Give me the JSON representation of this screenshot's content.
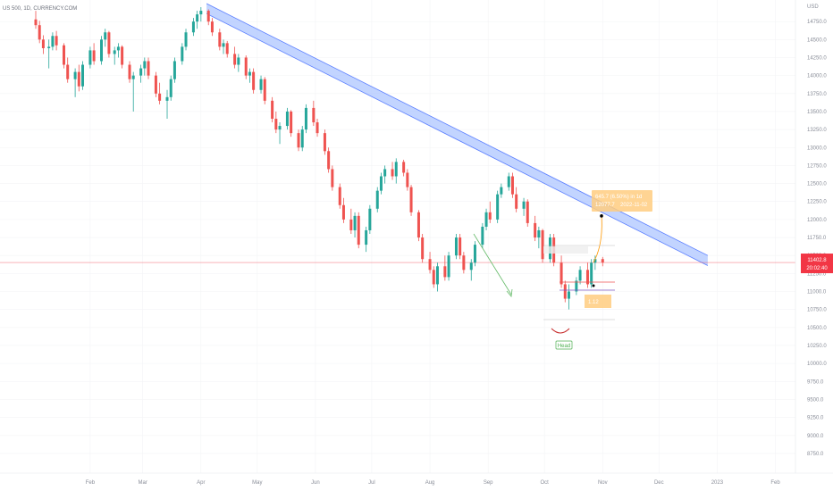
{
  "chart_data": {
    "type": "candlestick",
    "title": "US 500, 1D, CURRENCY.COM",
    "colors": {
      "up": "#26a69a",
      "down": "#ef5350",
      "channel": "#aec6ff",
      "price_line": "#f23645",
      "annotation": "#ffcc80"
    },
    "y_axis": {
      "ticks": [
        "14750.0",
        "14500.0",
        "14250.0",
        "14000.0",
        "13750.0",
        "13500.0",
        "13250.0",
        "13000.0",
        "12750.0",
        "12500.0",
        "12250.0",
        "12000.0",
        "11750.0",
        "11500.0",
        "11250.0",
        "11000.0",
        "10750.0",
        "10500.0",
        "10250.0",
        "10000.0",
        "9750.0",
        "9500.0",
        "9250.0",
        "9000.0",
        "8750.0"
      ],
      "currency": "USD",
      "ylim": [
        8625,
        15000
      ]
    },
    "x_axis": {
      "ticks": [
        "Feb",
        "Mar",
        "Apr",
        "May",
        "Jun",
        "Jul",
        "Aug",
        "Sep",
        "Oct",
        "Nov",
        "Dec",
        "2023",
        "Feb"
      ]
    },
    "current_price": {
      "label": "11402.8",
      "countdown": "20:02:40",
      "value": 11402.8
    },
    "channel": {
      "upper": [
        [
          "2022-04-04",
          15000
        ],
        [
          "2022-12-27",
          11500
        ]
      ],
      "lower": [
        [
          "2022-04-04",
          14860
        ],
        [
          "2022-12-27",
          11360
        ]
      ]
    },
    "annotations": {
      "head_label": "Head",
      "measure_line1": "645.7 (6.50%) in 1d",
      "measure_line2": "12077.7",
      "measure_date": "2022-11-02",
      "target_price": 12050,
      "stop_label": "1.12"
    },
    "candles": [
      {
        "d": "2022-01-03",
        "o": 14780,
        "h": 14900,
        "l": 14650,
        "c": 14700
      },
      {
        "d": "2022-01-05",
        "o": 14700,
        "h": 14760,
        "l": 14450,
        "c": 14500
      },
      {
        "d": "2022-01-07",
        "o": 14500,
        "h": 14560,
        "l": 14300,
        "c": 14380
      },
      {
        "d": "2022-01-10",
        "o": 14380,
        "h": 14500,
        "l": 14100,
        "c": 14400
      },
      {
        "d": "2022-01-12",
        "o": 14400,
        "h": 14600,
        "l": 14350,
        "c": 14550
      },
      {
        "d": "2022-01-14",
        "o": 14550,
        "h": 14620,
        "l": 14350,
        "c": 14420
      },
      {
        "d": "2022-01-18",
        "o": 14420,
        "h": 14450,
        "l": 14100,
        "c": 14150
      },
      {
        "d": "2022-01-20",
        "o": 14150,
        "h": 14250,
        "l": 13900,
        "c": 13950
      },
      {
        "d": "2022-01-24",
        "o": 13950,
        "h": 14100,
        "l": 13700,
        "c": 14050
      },
      {
        "d": "2022-01-26",
        "o": 14050,
        "h": 14150,
        "l": 13780,
        "c": 13850
      },
      {
        "d": "2022-01-28",
        "o": 13850,
        "h": 14200,
        "l": 13800,
        "c": 14150
      },
      {
        "d": "2022-02-01",
        "o": 14150,
        "h": 14400,
        "l": 14100,
        "c": 14350
      },
      {
        "d": "2022-02-03",
        "o": 14350,
        "h": 14450,
        "l": 14150,
        "c": 14200
      },
      {
        "d": "2022-02-07",
        "o": 14200,
        "h": 14550,
        "l": 14150,
        "c": 14500
      },
      {
        "d": "2022-02-09",
        "o": 14500,
        "h": 14650,
        "l": 14400,
        "c": 14600
      },
      {
        "d": "2022-02-11",
        "o": 14600,
        "h": 14620,
        "l": 14250,
        "c": 14300
      },
      {
        "d": "2022-02-14",
        "o": 14300,
        "h": 14400,
        "l": 14150,
        "c": 14350
      },
      {
        "d": "2022-02-16",
        "o": 14350,
        "h": 14450,
        "l": 14250,
        "c": 14400
      },
      {
        "d": "2022-02-18",
        "o": 14400,
        "h": 14420,
        "l": 14100,
        "c": 14150
      },
      {
        "d": "2022-02-22",
        "o": 14150,
        "h": 14200,
        "l": 13900,
        "c": 13950
      },
      {
        "d": "2022-02-24",
        "o": 13950,
        "h": 14050,
        "l": 13500,
        "c": 14000
      },
      {
        "d": "2022-02-28",
        "o": 14000,
        "h": 14150,
        "l": 13900,
        "c": 14100
      },
      {
        "d": "2022-03-02",
        "o": 14100,
        "h": 14250,
        "l": 14000,
        "c": 14200
      },
      {
        "d": "2022-03-04",
        "o": 14200,
        "h": 14250,
        "l": 13950,
        "c": 14000
      },
      {
        "d": "2022-03-08",
        "o": 14000,
        "h": 14050,
        "l": 13700,
        "c": 13750
      },
      {
        "d": "2022-03-10",
        "o": 13750,
        "h": 13900,
        "l": 13600,
        "c": 13650
      },
      {
        "d": "2022-03-14",
        "o": 13650,
        "h": 13800,
        "l": 13400,
        "c": 13700
      },
      {
        "d": "2022-03-16",
        "o": 13700,
        "h": 14000,
        "l": 13650,
        "c": 13950
      },
      {
        "d": "2022-03-18",
        "o": 13950,
        "h": 14250,
        "l": 13900,
        "c": 14200
      },
      {
        "d": "2022-03-22",
        "o": 14200,
        "h": 14450,
        "l": 14150,
        "c": 14400
      },
      {
        "d": "2022-03-24",
        "o": 14400,
        "h": 14650,
        "l": 14350,
        "c": 14600
      },
      {
        "d": "2022-03-28",
        "o": 14600,
        "h": 14800,
        "l": 14550,
        "c": 14750
      },
      {
        "d": "2022-03-30",
        "o": 14750,
        "h": 14900,
        "l": 14650,
        "c": 14850
      },
      {
        "d": "2022-04-01",
        "o": 14850,
        "h": 14950,
        "l": 14750,
        "c": 14900
      },
      {
        "d": "2022-04-05",
        "o": 14900,
        "h": 14920,
        "l": 14700,
        "c": 14750
      },
      {
        "d": "2022-04-07",
        "o": 14750,
        "h": 14800,
        "l": 14550,
        "c": 14600
      },
      {
        "d": "2022-04-11",
        "o": 14600,
        "h": 14650,
        "l": 14350,
        "c": 14400
      },
      {
        "d": "2022-04-13",
        "o": 14400,
        "h": 14500,
        "l": 14300,
        "c": 14450
      },
      {
        "d": "2022-04-15",
        "o": 14450,
        "h": 14480,
        "l": 14250,
        "c": 14300
      },
      {
        "d": "2022-04-19",
        "o": 14300,
        "h": 14400,
        "l": 14100,
        "c": 14150
      },
      {
        "d": "2022-04-21",
        "o": 14150,
        "h": 14300,
        "l": 14050,
        "c": 14250
      },
      {
        "d": "2022-04-25",
        "o": 14250,
        "h": 14280,
        "l": 13950,
        "c": 14000
      },
      {
        "d": "2022-04-27",
        "o": 14000,
        "h": 14100,
        "l": 13900,
        "c": 14050
      },
      {
        "d": "2022-04-29",
        "o": 14050,
        "h": 14100,
        "l": 13750,
        "c": 13800
      },
      {
        "d": "2022-05-03",
        "o": 13800,
        "h": 14000,
        "l": 13750,
        "c": 13950
      },
      {
        "d": "2022-05-05",
        "o": 13950,
        "h": 13980,
        "l": 13600,
        "c": 13650
      },
      {
        "d": "2022-05-09",
        "o": 13650,
        "h": 13700,
        "l": 13350,
        "c": 13400
      },
      {
        "d": "2022-05-11",
        "o": 13400,
        "h": 13500,
        "l": 13200,
        "c": 13250
      },
      {
        "d": "2022-05-13",
        "o": 13250,
        "h": 13350,
        "l": 13050,
        "c": 13300
      },
      {
        "d": "2022-05-17",
        "o": 13300,
        "h": 13550,
        "l": 13250,
        "c": 13500
      },
      {
        "d": "2022-05-19",
        "o": 13500,
        "h": 13520,
        "l": 13150,
        "c": 13200
      },
      {
        "d": "2022-05-23",
        "o": 13200,
        "h": 13250,
        "l": 12950,
        "c": 13000
      },
      {
        "d": "2022-05-25",
        "o": 13000,
        "h": 13300,
        "l": 12950,
        "c": 13250
      },
      {
        "d": "2022-05-27",
        "o": 13250,
        "h": 13600,
        "l": 13200,
        "c": 13550
      },
      {
        "d": "2022-05-31",
        "o": 13550,
        "h": 13650,
        "l": 13300,
        "c": 13350
      },
      {
        "d": "2022-06-02",
        "o": 13350,
        "h": 13400,
        "l": 13150,
        "c": 13200
      },
      {
        "d": "2022-06-06",
        "o": 13200,
        "h": 13250,
        "l": 12900,
        "c": 12950
      },
      {
        "d": "2022-06-08",
        "o": 12950,
        "h": 13000,
        "l": 12650,
        "c": 12700
      },
      {
        "d": "2022-06-10",
        "o": 12700,
        "h": 12750,
        "l": 12400,
        "c": 12450
      },
      {
        "d": "2022-06-14",
        "o": 12450,
        "h": 12500,
        "l": 12150,
        "c": 12200
      },
      {
        "d": "2022-06-16",
        "o": 12200,
        "h": 12300,
        "l": 11950,
        "c": 12000
      },
      {
        "d": "2022-06-20",
        "o": 12000,
        "h": 12150,
        "l": 11800,
        "c": 11850
      },
      {
        "d": "2022-06-22",
        "o": 11850,
        "h": 12100,
        "l": 11750,
        "c": 12050
      },
      {
        "d": "2022-06-24",
        "o": 12050,
        "h": 12100,
        "l": 11600,
        "c": 11650
      },
      {
        "d": "2022-06-28",
        "o": 11650,
        "h": 11900,
        "l": 11550,
        "c": 11850
      },
      {
        "d": "2022-06-30",
        "o": 11850,
        "h": 12200,
        "l": 11800,
        "c": 12150
      },
      {
        "d": "2022-07-04",
        "o": 12150,
        "h": 12450,
        "l": 12100,
        "c": 12400
      },
      {
        "d": "2022-07-06",
        "o": 12400,
        "h": 12650,
        "l": 12350,
        "c": 12600
      },
      {
        "d": "2022-07-08",
        "o": 12600,
        "h": 12750,
        "l": 12500,
        "c": 12700
      },
      {
        "d": "2022-07-12",
        "o": 12700,
        "h": 12800,
        "l": 12550,
        "c": 12600
      },
      {
        "d": "2022-07-14",
        "o": 12600,
        "h": 12850,
        "l": 12500,
        "c": 12800
      },
      {
        "d": "2022-07-18",
        "o": 12800,
        "h": 12830,
        "l": 12600,
        "c": 12650
      },
      {
        "d": "2022-07-20",
        "o": 12650,
        "h": 12700,
        "l": 12400,
        "c": 12450
      },
      {
        "d": "2022-07-22",
        "o": 12450,
        "h": 12480,
        "l": 12050,
        "c": 12100
      },
      {
        "d": "2022-07-26",
        "o": 12100,
        "h": 12130,
        "l": 11700,
        "c": 11750
      },
      {
        "d": "2022-07-28",
        "o": 11750,
        "h": 11800,
        "l": 11400,
        "c": 11450
      },
      {
        "d": "2022-08-01",
        "o": 11450,
        "h": 11550,
        "l": 11250,
        "c": 11300
      },
      {
        "d": "2022-08-03",
        "o": 11300,
        "h": 11350,
        "l": 11050,
        "c": 11100
      },
      {
        "d": "2022-08-05",
        "o": 11100,
        "h": 11400,
        "l": 11000,
        "c": 11350
      },
      {
        "d": "2022-08-09",
        "o": 11350,
        "h": 11500,
        "l": 11150,
        "c": 11200
      },
      {
        "d": "2022-08-11",
        "o": 11200,
        "h": 11550,
        "l": 11150,
        "c": 11500
      },
      {
        "d": "2022-08-15",
        "o": 11500,
        "h": 11800,
        "l": 11450,
        "c": 11750
      },
      {
        "d": "2022-08-17",
        "o": 11750,
        "h": 11800,
        "l": 11450,
        "c": 11500
      },
      {
        "d": "2022-08-19",
        "o": 11500,
        "h": 11550,
        "l": 11250,
        "c": 11300
      },
      {
        "d": "2022-08-23",
        "o": 11300,
        "h": 11450,
        "l": 11150,
        "c": 11400
      },
      {
        "d": "2022-08-25",
        "o": 11400,
        "h": 11700,
        "l": 11350,
        "c": 11650
      },
      {
        "d": "2022-08-29",
        "o": 11650,
        "h": 11950,
        "l": 11600,
        "c": 11900
      },
      {
        "d": "2022-08-31",
        "o": 11900,
        "h": 12150,
        "l": 11850,
        "c": 12100
      },
      {
        "d": "2022-09-02",
        "o": 12100,
        "h": 12250,
        "l": 11950,
        "c": 12000
      },
      {
        "d": "2022-09-06",
        "o": 12000,
        "h": 12400,
        "l": 11950,
        "c": 12350
      },
      {
        "d": "2022-09-08",
        "o": 12350,
        "h": 12500,
        "l": 12300,
        "c": 12450
      },
      {
        "d": "2022-09-12",
        "o": 12450,
        "h": 12650,
        "l": 12400,
        "c": 12600
      },
      {
        "d": "2022-09-14",
        "o": 12600,
        "h": 12650,
        "l": 12300,
        "c": 12350
      },
      {
        "d": "2022-09-16",
        "o": 12350,
        "h": 12450,
        "l": 12100,
        "c": 12150
      },
      {
        "d": "2022-09-20",
        "o": 12150,
        "h": 12300,
        "l": 12050,
        "c": 12250
      },
      {
        "d": "2022-09-22",
        "o": 12250,
        "h": 12280,
        "l": 11900,
        "c": 11950
      },
      {
        "d": "2022-09-26",
        "o": 11950,
        "h": 12050,
        "l": 11700,
        "c": 11750
      },
      {
        "d": "2022-09-28",
        "o": 11750,
        "h": 11900,
        "l": 11600,
        "c": 11850
      },
      {
        "d": "2022-09-30",
        "o": 11850,
        "h": 11870,
        "l": 11400,
        "c": 11450
      },
      {
        "d": "2022-10-04",
        "o": 11450,
        "h": 11800,
        "l": 11400,
        "c": 11750
      },
      {
        "d": "2022-10-06",
        "o": 11750,
        "h": 11800,
        "l": 11350,
        "c": 11400
      },
      {
        "d": "2022-10-10",
        "o": 11400,
        "h": 11500,
        "l": 11050,
        "c": 11100
      },
      {
        "d": "2022-10-12",
        "o": 11100,
        "h": 11150,
        "l": 10850,
        "c": 10900
      },
      {
        "d": "2022-10-14",
        "o": 10900,
        "h": 11100,
        "l": 10750,
        "c": 11000
      },
      {
        "d": "2022-10-18",
        "o": 11000,
        "h": 11200,
        "l": 10950,
        "c": 11150
      },
      {
        "d": "2022-10-20",
        "o": 11150,
        "h": 11350,
        "l": 11100,
        "c": 11300
      },
      {
        "d": "2022-10-24",
        "o": 11300,
        "h": 11400,
        "l": 11050,
        "c": 11100
      },
      {
        "d": "2022-10-26",
        "o": 11100,
        "h": 11450,
        "l": 11050,
        "c": 11400
      },
      {
        "d": "2022-10-28",
        "o": 11400,
        "h": 11500,
        "l": 11300,
        "c": 11450
      },
      {
        "d": "2022-11-01",
        "o": 11450,
        "h": 11480,
        "l": 11350,
        "c": 11402.8
      }
    ]
  }
}
